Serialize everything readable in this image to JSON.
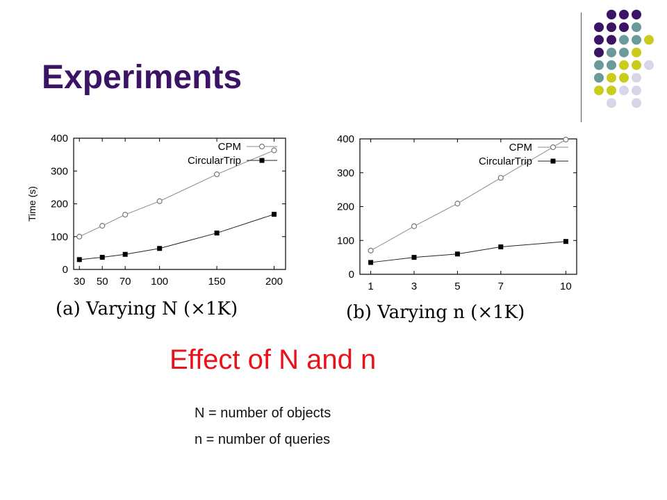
{
  "slide": {
    "title": "Experiments",
    "subtitle": "Effect of N and n",
    "notes": [
      "N = number of objects",
      "n = number of queries"
    ],
    "dot_colors": {
      "purple": "#3b1466",
      "teal": "#6b9a9a",
      "yellow": "#c9cc1a",
      "lavender": "#d6d6ea"
    }
  },
  "chart_data": [
    {
      "type": "line",
      "caption": "(a) Varying N (×1K)",
      "ylabel": "Time (s)",
      "xlabel": "",
      "x": [
        30,
        50,
        70,
        100,
        150,
        200
      ],
      "xticks": [
        "30",
        "50",
        "70",
        "100",
        "150",
        "200"
      ],
      "yticks": [
        "0",
        "100",
        "200",
        "300",
        "400"
      ],
      "xlim": [
        25,
        210
      ],
      "ylim": [
        0,
        400
      ],
      "grid": false,
      "legend": "top-right",
      "series": [
        {
          "name": "CPM",
          "marker": "open-circle",
          "color": "#777777",
          "values": [
            100,
            133,
            167,
            208,
            290,
            363
          ]
        },
        {
          "name": "CircularTrip",
          "marker": "filled-square",
          "color": "#000000",
          "values": [
            30,
            37,
            46,
            64,
            111,
            168
          ]
        }
      ]
    },
    {
      "type": "line",
      "caption": "(b) Varying n (×1K)",
      "ylabel": "",
      "xlabel": "",
      "x": [
        1,
        3,
        5,
        7,
        10
      ],
      "xticks": [
        "1",
        "3",
        "5",
        "7",
        "10"
      ],
      "yticks": [
        "0",
        "100",
        "200",
        "300",
        "400"
      ],
      "xlim": [
        0.5,
        10.5
      ],
      "ylim": [
        0,
        400
      ],
      "grid": false,
      "legend": "top-right",
      "series": [
        {
          "name": "CPM",
          "marker": "open-circle",
          "color": "#777777",
          "values": [
            70,
            142,
            209,
            285,
            398
          ]
        },
        {
          "name": "CircularTrip",
          "marker": "filled-square",
          "color": "#000000",
          "values": [
            35,
            50,
            60,
            81,
            97
          ]
        }
      ]
    }
  ]
}
